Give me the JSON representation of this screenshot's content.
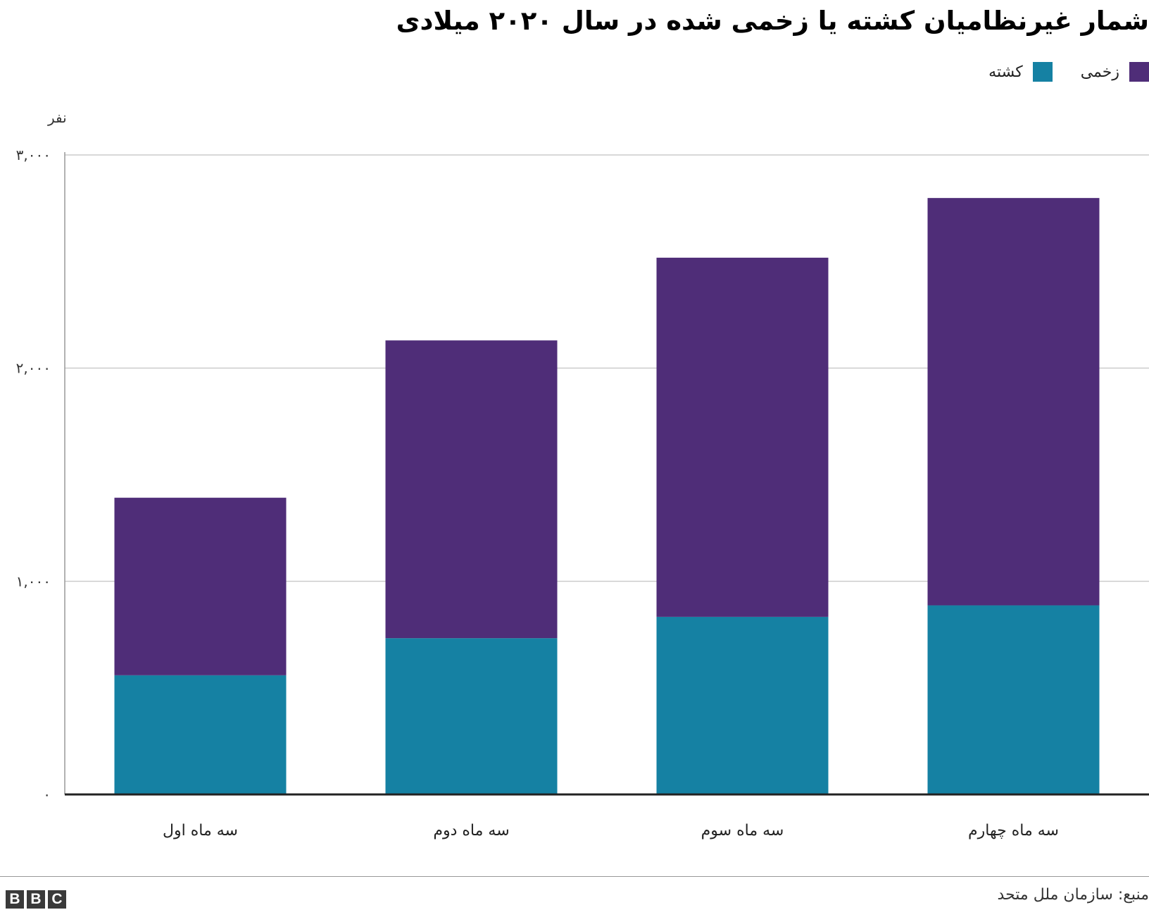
{
  "title": "شمار غیرنظامیان کشته یا زخمی شده در سال ۲۰۲۰ میلادی",
  "legend": {
    "items": [
      {
        "label": "زخمی",
        "color": "#4f2d78"
      },
      {
        "label": "کشته",
        "color": "#1581a3"
      }
    ]
  },
  "source": "منبع: سازمان ملل متحد",
  "logo": [
    "B",
    "B",
    "C"
  ],
  "chart_data": {
    "type": "bar",
    "stacked": true,
    "title": "شمار غیرنظامیان کشته یا زخمی شده در سال ۲۰۲۰ میلادی",
    "xlabel": "",
    "ylabel": "نفر",
    "ylim": [
      0,
      3000
    ],
    "yticks": [
      0,
      1000,
      2000,
      3000
    ],
    "ytick_labels": [
      "۰",
      "۱,۰۰۰",
      "۲,۰۰۰",
      "۳,۰۰۰"
    ],
    "categories": [
      "سه ماه اول",
      "سه ماه دوم",
      "سه ماه سوم",
      "سه ماه چهارم"
    ],
    "series": [
      {
        "name": "کشته",
        "color": "#1581a3",
        "values": [
          559,
          733,
          833,
          887
        ]
      },
      {
        "name": "زخمی",
        "color": "#4f2d78",
        "values": [
          833,
          1397,
          1685,
          1911
        ]
      }
    ],
    "grid": true,
    "legend_position": "top-right"
  }
}
